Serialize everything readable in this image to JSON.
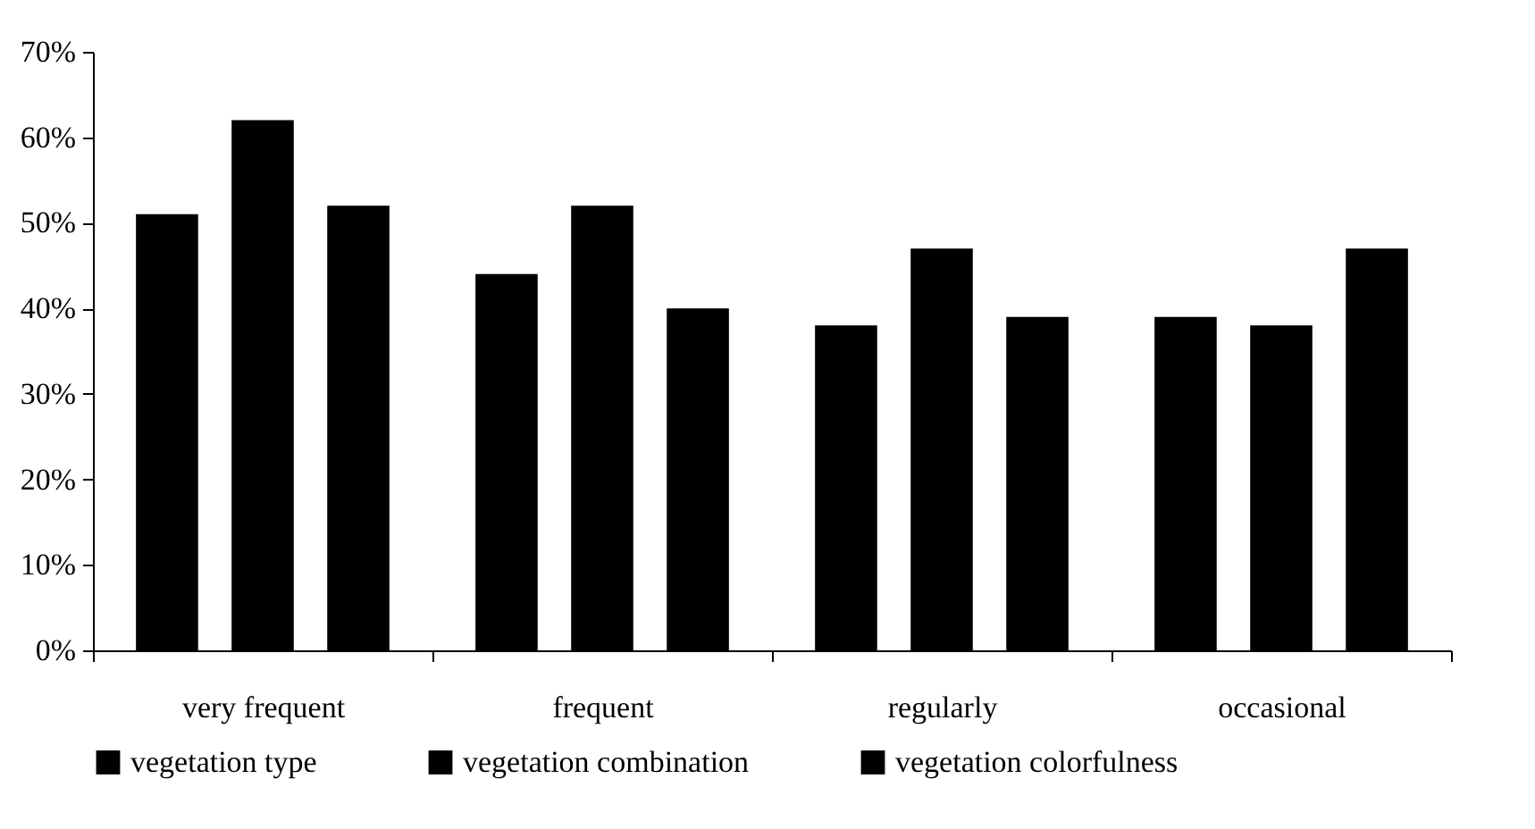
{
  "chart_data": {
    "type": "bar",
    "categories": [
      "very frequent",
      "frequent",
      "regularly",
      "occasional"
    ],
    "series": [
      {
        "name": "vegetation type",
        "color": "#000000",
        "values": [
          51,
          44,
          38,
          39
        ]
      },
      {
        "name": "vegetation combination",
        "color": "#000000",
        "values": [
          62,
          52,
          47,
          38
        ]
      },
      {
        "name": "vegetation colorfulness",
        "color": "#000000",
        "values": [
          52,
          40,
          39,
          47
        ]
      }
    ],
    "ylim": [
      0,
      70
    ],
    "yticks": [
      {
        "value": 0,
        "label": "0%"
      },
      {
        "value": 10,
        "label": "10%"
      },
      {
        "value": 20,
        "label": "20%"
      },
      {
        "value": 30,
        "label": "30%"
      },
      {
        "value": 40,
        "label": "40%"
      },
      {
        "value": 50,
        "label": "50%"
      },
      {
        "value": 60,
        "label": "60%"
      },
      {
        "value": 70,
        "label": "70%"
      }
    ],
    "grid": false,
    "legend": "bottom"
  }
}
